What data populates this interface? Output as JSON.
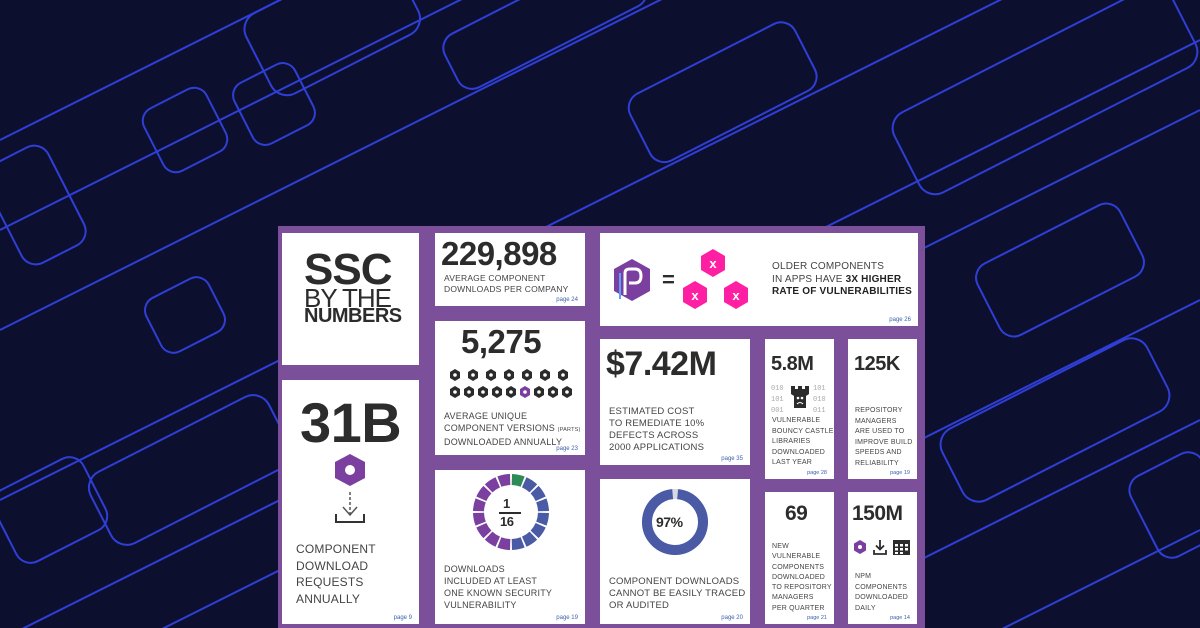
{
  "colors": {
    "background": "#0c0f2e",
    "line": "#2f3fd6",
    "board": "#7b4f9a",
    "hex_purple": "#7b3fa0",
    "hex_pink": "#ff1fa3",
    "ring_blue": "#4a5aa5",
    "ring_green": "#2e8b57"
  },
  "cards": {
    "title": {
      "line1": "SSC",
      "line2": "BY THE",
      "line3": "NUMBERS"
    },
    "downloads": {
      "value": "31B",
      "caption": [
        "COMPONENT",
        "DOWNLOAD",
        "REQUESTS",
        "ANNUALLY"
      ],
      "page": "page 9",
      "icon": "hexagon-download-icon"
    },
    "avg_downloads": {
      "value": "229,898",
      "caption": [
        "AVERAGE COMPONENT",
        "DOWNLOADS PER COMPANY"
      ],
      "page": "page 24"
    },
    "versions": {
      "value": "5,275",
      "caption1": "AVERAGE UNIQUE",
      "caption2": "COMPONENT VERSIONS",
      "caption2_note": "(PARTS)",
      "caption3": "DOWNLOADED ANNUALLY",
      "page": "page 23",
      "icon": "hex-nut-row-icon"
    },
    "vuln_fraction": {
      "numerator": "1",
      "denominator": "16",
      "caption": [
        "DOWNLOADS",
        "INCLUDED AT LEAST",
        "ONE KNOWN SECURITY",
        "VULNERABILITY"
      ],
      "page": "page 19",
      "fraction_value": 0.0625
    },
    "older": {
      "equals": "=",
      "caption1": "OLDER COMPONENTS",
      "caption2": "IN APPS HAVE ",
      "caption2_bold": "3X HIGHER",
      "caption3": "RATE OF VULNERABILITIES",
      "page": "page 26",
      "x_label": "x",
      "icon": "component-logo-icon"
    },
    "cost": {
      "value": "$7.42M",
      "caption": [
        "ESTIMATED COST",
        "TO REMEDIATE 10%",
        "DEFECTS ACROSS",
        "2000 APPLICATIONS"
      ],
      "page": "page 35"
    },
    "bouncy": {
      "value": "5.8M",
      "binary": [
        "010",
        "101",
        "101",
        "010",
        "001",
        "011"
      ],
      "caption": [
        "VULNERABLE",
        "BOUNCY CASTLE",
        "LIBRARIES",
        "DOWNLOADED",
        "LAST YEAR"
      ],
      "page": "page 28",
      "icon": "castle-icon"
    },
    "repo_managers": {
      "value": "125K",
      "caption": [
        "REPOSITORY",
        "MANAGERS",
        "ARE USED TO",
        "IMPROVE BUILD",
        "SPEEDS AND",
        "RELIABILITY"
      ],
      "page": "page 19"
    },
    "untraced": {
      "value": "97%",
      "caption": [
        "COMPONENT DOWNLOADS",
        "CANNOT BE EASILY TRACED",
        "OR AUDITED"
      ],
      "page": "page 20",
      "percent": 97
    },
    "new_vuln": {
      "value": "69",
      "caption": [
        "NEW",
        "VULNERABLE",
        "COMPONENTS",
        "DOWNLOADED",
        "TO REPOSITORY",
        "MANAGERS",
        "PER QUARTER"
      ],
      "page": "page 21"
    },
    "npm": {
      "value": "150M",
      "caption": [
        "NPM",
        "COMPONENTS",
        "DOWNLOADED",
        "DAILY"
      ],
      "page": "page 14",
      "icons": [
        "hexagon-icon",
        "download-icon",
        "calendar-icon"
      ]
    }
  }
}
